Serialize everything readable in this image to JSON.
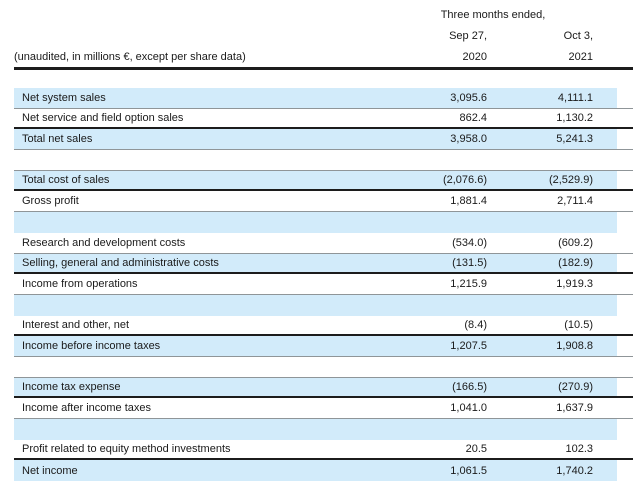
{
  "document": {
    "period_header": "Three months ended,",
    "note": "(unaudited, in millions €, except per share data)",
    "columns": [
      {
        "month_day": "Sep 27,",
        "year": "2020"
      },
      {
        "month_day": "Oct 3,",
        "year": "2021"
      }
    ]
  },
  "table": {
    "rows": [
      {
        "type": "data",
        "label": "Net system sales",
        "values": [
          "3,095.6",
          "4,111.1"
        ]
      },
      {
        "type": "data",
        "label": "Net service and field option sales",
        "values": [
          "862.4",
          "1,130.2"
        ]
      },
      {
        "type": "total",
        "label": "Total net sales",
        "values": [
          "3,958.0",
          "5,241.3"
        ]
      },
      {
        "type": "spacer",
        "label": "",
        "values": [
          "",
          ""
        ]
      },
      {
        "type": "data",
        "label": "Total cost of sales",
        "values": [
          "(2,076.6)",
          "(2,529.9)"
        ]
      },
      {
        "type": "total",
        "label": "Gross profit",
        "values": [
          "1,881.4",
          "2,711.4"
        ]
      },
      {
        "type": "spacer",
        "label": "",
        "values": [
          "",
          ""
        ]
      },
      {
        "type": "data",
        "label": "Research and development costs",
        "values": [
          "(534.0)",
          "(609.2)"
        ]
      },
      {
        "type": "data",
        "label": "Selling, general and administrative costs",
        "values": [
          "(131.5)",
          "(182.9)"
        ]
      },
      {
        "type": "total",
        "label": "Income from operations",
        "values": [
          "1,215.9",
          "1,919.3"
        ]
      },
      {
        "type": "spacer",
        "label": "",
        "values": [
          "",
          ""
        ]
      },
      {
        "type": "data",
        "label": "Interest and other, net",
        "values": [
          "(8.4)",
          "(10.5)"
        ]
      },
      {
        "type": "total",
        "label": "Income before income taxes",
        "values": [
          "1,207.5",
          "1,908.8"
        ]
      },
      {
        "type": "spacer",
        "label": "",
        "values": [
          "",
          ""
        ]
      },
      {
        "type": "data",
        "label": "Income tax expense",
        "values": [
          "(166.5)",
          "(270.9)"
        ]
      },
      {
        "type": "total",
        "label": "Income after income taxes",
        "values": [
          "1,041.0",
          "1,637.9"
        ]
      },
      {
        "type": "spacer",
        "label": "",
        "values": [
          "",
          ""
        ]
      },
      {
        "type": "data",
        "label": "Profit related to equity method investments",
        "values": [
          "20.5",
          "102.3"
        ]
      },
      {
        "type": "total",
        "label": "Net income",
        "values": [
          "1,061.5",
          "1,740.2"
        ]
      }
    ]
  },
  "colors": {
    "row_highlight": "#d2ebfa",
    "thick_rule": "#1c1c1c",
    "thin_rule": "#8f9598"
  }
}
